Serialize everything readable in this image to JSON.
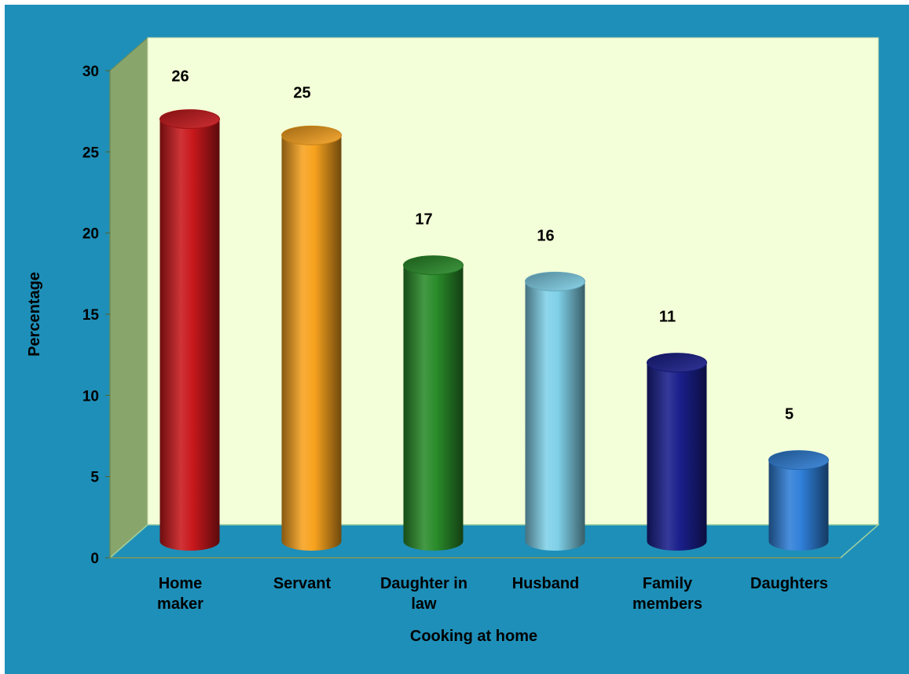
{
  "chart_data": {
    "type": "bar",
    "style": "3d-cylinder",
    "categories": [
      [
        "Home",
        "maker"
      ],
      [
        "Servant"
      ],
      [
        "Daughter in",
        "law"
      ],
      [
        "Husband"
      ],
      [
        "Family",
        "members"
      ],
      [
        "Daughters"
      ]
    ],
    "values": [
      26,
      25,
      17,
      16,
      11,
      5
    ],
    "value_labels": [
      "26",
      "25",
      "17",
      "16",
      "11",
      "5"
    ],
    "bar_colors": [
      "#c8181c",
      "#f7a21e",
      "#2a8c2a",
      "#7fd0e8",
      "#1a1f8c",
      "#2f7fd8"
    ],
    "xlabel": "Cooking at home",
    "ylabel": "Percentage",
    "ylim": [
      0,
      30
    ],
    "yticks": [
      "0",
      "5",
      "10",
      "15",
      "20",
      "25",
      "30"
    ],
    "grid": false,
    "legend": "none",
    "background": "#1e8fb8",
    "wall_color": "#f3ffd8",
    "side_wall_color": "#88a66c",
    "floor_color": "#1e8fb8"
  }
}
